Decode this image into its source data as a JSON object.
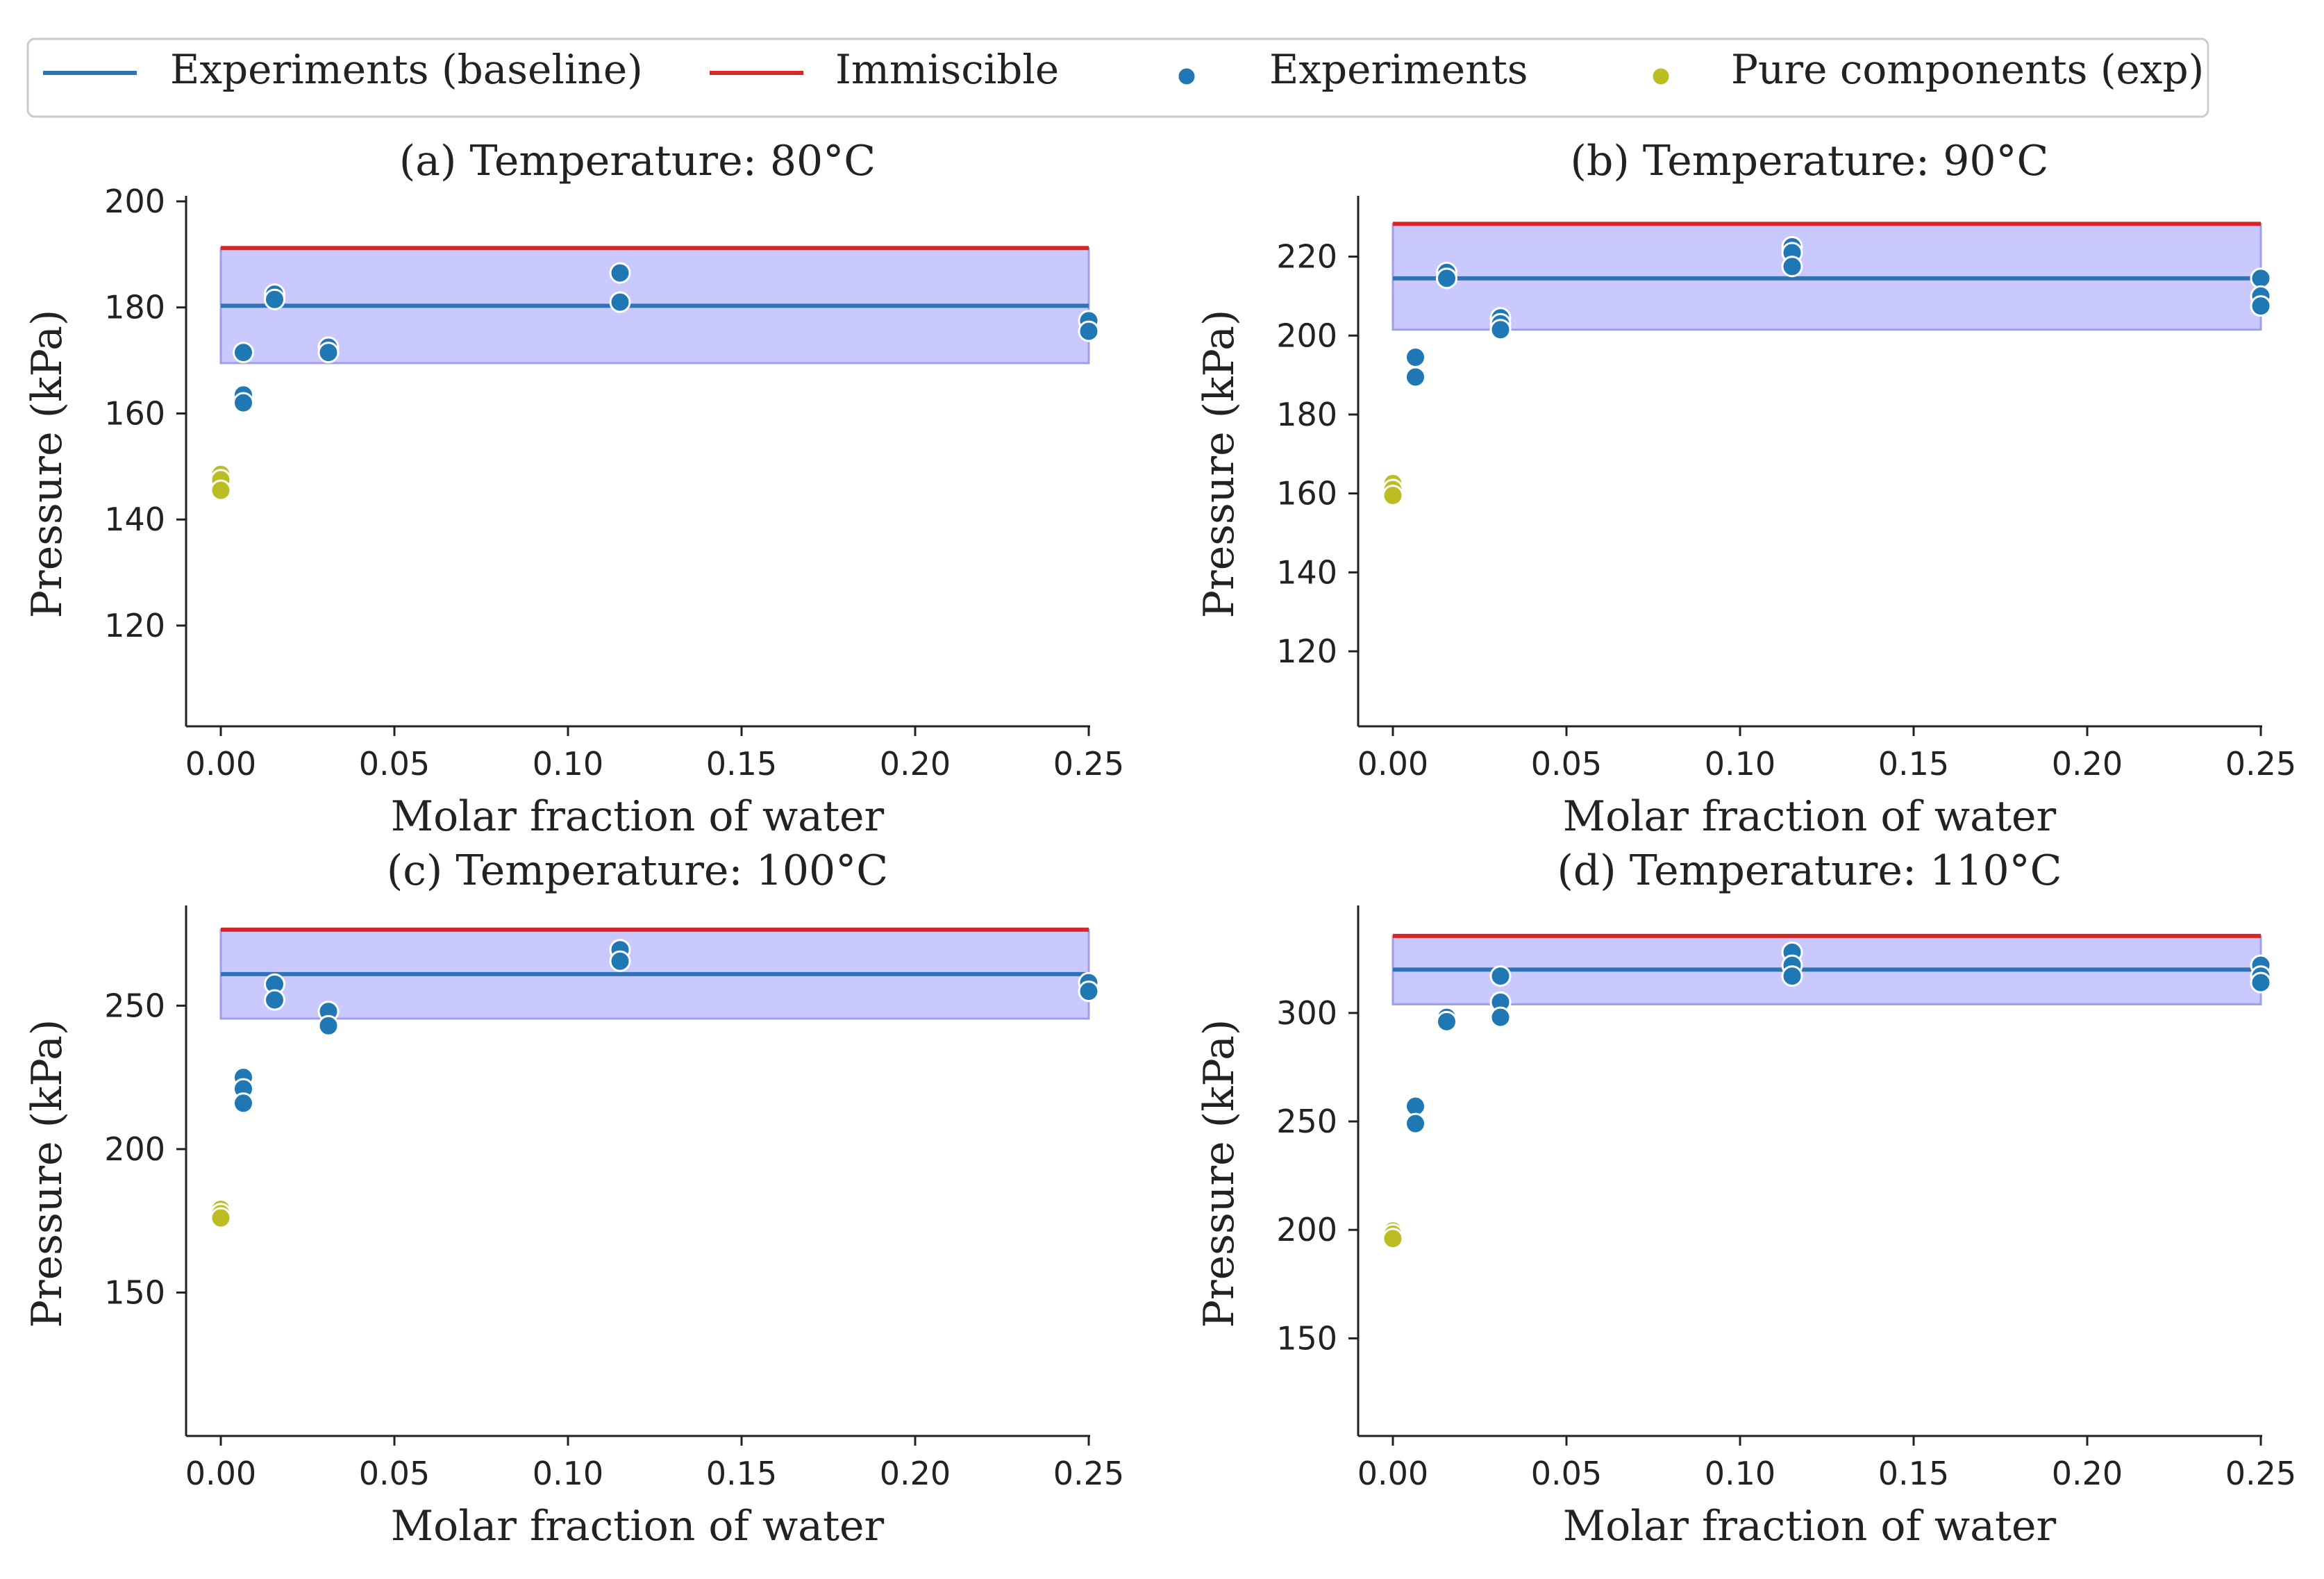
{
  "legend": {
    "placement": "top",
    "items": [
      {
        "label": "Experiments (baseline)",
        "kind": "line",
        "color": "#2e74b5"
      },
      {
        "label": "Immiscible",
        "kind": "line",
        "color": "#d62728"
      },
      {
        "label": "Experiments",
        "kind": "dot",
        "color": "#1f77b4"
      },
      {
        "label": "Pure components (exp)",
        "kind": "dot",
        "color": "#bcbd22"
      }
    ]
  },
  "colors": {
    "baseline": "#2e74b5",
    "immiscible": "#d62728",
    "experiments": "#1f77b4",
    "pure": "#bcbd22",
    "band": "#c7c7ff",
    "band_edge": "#9a9ae6",
    "axis": "#222222"
  },
  "chart_data": [
    {
      "type": "scatter",
      "title": "(a) Temperature: 80°C",
      "xlabel": "Molar fraction of water",
      "ylabel": "Pressure (kPa)",
      "xlim": [
        -0.01,
        0.25
      ],
      "ylim": [
        101,
        200
      ],
      "xticks": [
        0.0,
        0.05,
        0.1,
        0.15,
        0.2,
        0.25
      ],
      "xtick_labels": [
        "0.00",
        "0.05",
        "0.10",
        "0.15",
        "0.20",
        "0.25"
      ],
      "yticks": [
        120,
        140,
        160,
        180,
        200
      ],
      "ytick_labels": [
        "120",
        "140",
        "160",
        "180",
        "200"
      ],
      "grid": false,
      "baseline": 180.3,
      "immiscible": 191.2,
      "band": [
        169.5,
        191.2
      ],
      "band_x": [
        0.0,
        0.25
      ],
      "experiments": [
        [
          0.0065,
          171.5
        ],
        [
          0.0065,
          163.5
        ],
        [
          0.0065,
          162
        ],
        [
          0.0155,
          182.5
        ],
        [
          0.0155,
          181.5
        ],
        [
          0.031,
          172.5
        ],
        [
          0.031,
          171.5
        ],
        [
          0.115,
          186.5
        ],
        [
          0.115,
          181
        ],
        [
          0.25,
          177.5
        ],
        [
          0.25,
          175.5
        ]
      ],
      "pure": [
        [
          0.0,
          148.5
        ],
        [
          0.0,
          147.5
        ],
        [
          0.0,
          145.5
        ]
      ]
    },
    {
      "type": "scatter",
      "title": "(b) Temperature: 90°C",
      "xlabel": "Molar fraction of water",
      "ylabel": "Pressure (kPa)",
      "xlim": [
        -0.01,
        0.25
      ],
      "ylim": [
        101,
        234
      ],
      "xticks": [
        0.0,
        0.05,
        0.1,
        0.15,
        0.2,
        0.25
      ],
      "xtick_labels": [
        "0.00",
        "0.05",
        "0.10",
        "0.15",
        "0.20",
        "0.25"
      ],
      "yticks": [
        120,
        140,
        160,
        180,
        200,
        220
      ],
      "ytick_labels": [
        "120",
        "140",
        "160",
        "180",
        "200",
        "220"
      ],
      "grid": false,
      "baseline": 214.5,
      "immiscible": 228.3,
      "band": [
        201.5,
        228.3
      ],
      "band_x": [
        0.0,
        0.25
      ],
      "experiments": [
        [
          0.0065,
          194.5
        ],
        [
          0.0065,
          189.5
        ],
        [
          0.0155,
          216
        ],
        [
          0.0155,
          214.5
        ],
        [
          0.031,
          204.5
        ],
        [
          0.031,
          203
        ],
        [
          0.031,
          201.5
        ],
        [
          0.115,
          222.5
        ],
        [
          0.115,
          221
        ],
        [
          0.115,
          217.5
        ],
        [
          0.25,
          214.5
        ],
        [
          0.25,
          210
        ],
        [
          0.25,
          207.5
        ]
      ],
      "pure": [
        [
          0.0,
          162.5
        ],
        [
          0.0,
          161
        ],
        [
          0.0,
          159.5
        ]
      ]
    },
    {
      "type": "scatter",
      "title": "(c) Temperature: 100°C",
      "xlabel": "Molar fraction of water",
      "ylabel": "Pressure (kPa)",
      "xlim": [
        -0.01,
        0.25
      ],
      "ylim": [
        100,
        283
      ],
      "xticks": [
        0.0,
        0.05,
        0.1,
        0.15,
        0.2,
        0.25
      ],
      "xtick_labels": [
        "0.00",
        "0.05",
        "0.10",
        "0.15",
        "0.20",
        "0.25"
      ],
      "yticks": [
        150,
        200,
        250
      ],
      "ytick_labels": [
        "150",
        "200",
        "250"
      ],
      "grid": false,
      "baseline": 261,
      "immiscible": 276.5,
      "band": [
        245.5,
        276.5
      ],
      "band_x": [
        0.0,
        0.25
      ],
      "experiments": [
        [
          0.0065,
          225
        ],
        [
          0.0065,
          221
        ],
        [
          0.0065,
          216
        ],
        [
          0.0155,
          257.5
        ],
        [
          0.0155,
          252
        ],
        [
          0.031,
          248
        ],
        [
          0.031,
          243
        ],
        [
          0.115,
          269.5
        ],
        [
          0.115,
          265.5
        ],
        [
          0.25,
          258
        ],
        [
          0.25,
          255
        ]
      ],
      "pure": [
        [
          0.0,
          179
        ],
        [
          0.0,
          177.5
        ],
        [
          0.0,
          176
        ]
      ]
    },
    {
      "type": "scatter",
      "title": "(d) Temperature: 110°C",
      "xlabel": "Molar fraction of water",
      "ylabel": "Pressure (kPa)",
      "xlim": [
        -0.01,
        0.25
      ],
      "ylim": [
        105,
        347
      ],
      "xticks": [
        0.0,
        0.05,
        0.1,
        0.15,
        0.2,
        0.25
      ],
      "xtick_labels": [
        "0.00",
        "0.05",
        "0.10",
        "0.15",
        "0.20",
        "0.25"
      ],
      "yticks": [
        150,
        200,
        250,
        300
      ],
      "ytick_labels": [
        "150",
        "200",
        "250",
        "300"
      ],
      "grid": false,
      "baseline": 320,
      "immiscible": 335.5,
      "band": [
        304,
        335.5
      ],
      "band_x": [
        0.0,
        0.25
      ],
      "experiments": [
        [
          0.0065,
          257
        ],
        [
          0.0065,
          249
        ],
        [
          0.0155,
          298
        ],
        [
          0.0155,
          296
        ],
        [
          0.031,
          317
        ],
        [
          0.031,
          305
        ],
        [
          0.031,
          298
        ],
        [
          0.115,
          328
        ],
        [
          0.115,
          322
        ],
        [
          0.115,
          317
        ],
        [
          0.25,
          322
        ],
        [
          0.25,
          317
        ],
        [
          0.25,
          314
        ]
      ],
      "pure": [
        [
          0.0,
          199.5
        ],
        [
          0.0,
          198
        ],
        [
          0.0,
          196
        ]
      ]
    }
  ]
}
